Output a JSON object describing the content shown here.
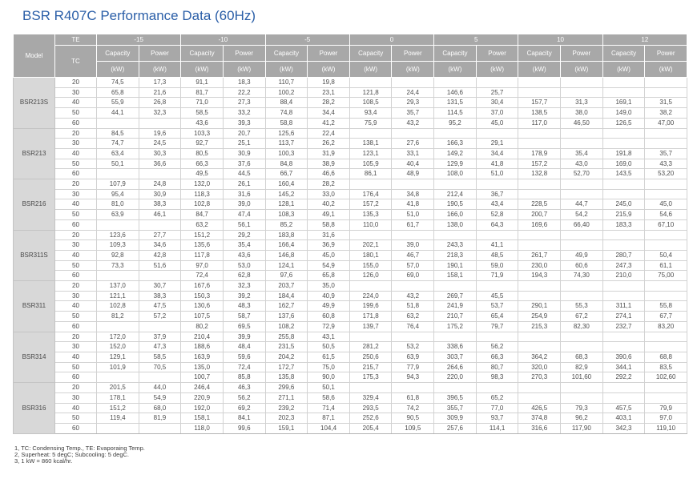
{
  "title": "BSR R407C Performance Data (60Hz)",
  "colors": {
    "title_blue": "#2b5fa8",
    "header_gray": "#a8a8a8",
    "model_gray": "#d8d8d8",
    "grid_gray": "#d2d2d2"
  },
  "table": {
    "model_header": "Model",
    "te_label": "TE",
    "tc_label": "TC",
    "capacity_label": "Capacity",
    "power_label": "Power",
    "unit_label": "(kW)",
    "te_values": [
      "-15",
      "-10",
      "-5",
      "0",
      "5",
      "10",
      "12"
    ],
    "models": [
      {
        "name": "BSR213S",
        "rows": [
          {
            "tc": "20",
            "values": [
              "74,5",
              "17,3",
              "91,1",
              "18,3",
              "110,7",
              "19,8",
              "",
              "",
              "",
              "",
              "",
              "",
              "",
              ""
            ]
          },
          {
            "tc": "30",
            "values": [
              "65,8",
              "21,6",
              "81,7",
              "22,2",
              "100,2",
              "23,1",
              "121,8",
              "24,4",
              "146,6",
              "25,7",
              "",
              "",
              "",
              ""
            ]
          },
          {
            "tc": "40",
            "values": [
              "55,9",
              "26,8",
              "71,0",
              "27,3",
              "88,4",
              "28,2",
              "108,5",
              "29,3",
              "131,5",
              "30,4",
              "157,7",
              "31,3",
              "169,1",
              "31,5"
            ]
          },
          {
            "tc": "50",
            "values": [
              "44,1",
              "32,3",
              "58,5",
              "33,2",
              "74,8",
              "34,4",
              "93,4",
              "35,7",
              "114,5",
              "37,0",
              "138,5",
              "38,0",
              "149,0",
              "38,2"
            ]
          },
          {
            "tc": "60",
            "values": [
              "",
              "",
              "43,6",
              "39,3",
              "58,8",
              "41,2",
              "75,9",
              "43,2",
              "95,2",
              "45,0",
              "117,0",
              "46,50",
              "126,5",
              "47,00"
            ]
          }
        ]
      },
      {
        "name": "BSR213",
        "rows": [
          {
            "tc": "20",
            "values": [
              "84,5",
              "19,6",
              "103,3",
              "20,7",
              "125,6",
              "22,4",
              "",
              "",
              "",
              "",
              "",
              "",
              "",
              ""
            ]
          },
          {
            "tc": "30",
            "values": [
              "74,7",
              "24,5",
              "92,7",
              "25,1",
              "113,7",
              "26,2",
              "138,1",
              "27,6",
              "166,3",
              "29,1",
              "",
              "",
              "",
              ""
            ]
          },
          {
            "tc": "40",
            "values": [
              "63,4",
              "30,3",
              "80,5",
              "30,9",
              "100,3",
              "31,9",
              "123,1",
              "33,1",
              "149,2",
              "34,4",
              "178,9",
              "35,4",
              "191,8",
              "35,7"
            ]
          },
          {
            "tc": "50",
            "values": [
              "50,1",
              "36,6",
              "66,3",
              "37,6",
              "84,8",
              "38,9",
              "105,9",
              "40,4",
              "129,9",
              "41,8",
              "157,2",
              "43,0",
              "169,0",
              "43,3"
            ]
          },
          {
            "tc": "60",
            "values": [
              "",
              "",
              "49,5",
              "44,5",
              "66,7",
              "46,6",
              "86,1",
              "48,9",
              "108,0",
              "51,0",
              "132,8",
              "52,70",
              "143,5",
              "53,20"
            ]
          }
        ]
      },
      {
        "name": "BSR216",
        "rows": [
          {
            "tc": "20",
            "values": [
              "107,9",
              "24,8",
              "132,0",
              "26,1",
              "160,4",
              "28,2",
              "",
              "",
              "",
              "",
              "",
              "",
              "",
              ""
            ]
          },
          {
            "tc": "30",
            "values": [
              "95,4",
              "30,9",
              "118,3",
              "31,6",
              "145,2",
              "33,0",
              "176,4",
              "34,8",
              "212,4",
              "36,7",
              "",
              "",
              "",
              ""
            ]
          },
          {
            "tc": "40",
            "values": [
              "81,0",
              "38,3",
              "102,8",
              "39,0",
              "128,1",
              "40,2",
              "157,2",
              "41,8",
              "190,5",
              "43,4",
              "228,5",
              "44,7",
              "245,0",
              "45,0"
            ]
          },
          {
            "tc": "50",
            "values": [
              "63,9",
              "46,1",
              "84,7",
              "47,4",
              "108,3",
              "49,1",
              "135,3",
              "51,0",
              "166,0",
              "52,8",
              "200,7",
              "54,2",
              "215,9",
              "54,6"
            ]
          },
          {
            "tc": "60",
            "values": [
              "",
              "",
              "63,2",
              "56,1",
              "85,2",
              "58,8",
              "110,0",
              "61,7",
              "138,0",
              "64,3",
              "169,6",
              "66,40",
              "183,3",
              "67,10"
            ]
          }
        ]
      },
      {
        "name": "BSR311S",
        "rows": [
          {
            "tc": "20",
            "values": [
              "123,6",
              "27,7",
              "151,2",
              "29,2",
              "183,8",
              "31,6",
              "",
              "",
              "",
              "",
              "",
              "",
              "",
              ""
            ]
          },
          {
            "tc": "30",
            "values": [
              "109,3",
              "34,6",
              "135,6",
              "35,4",
              "166,4",
              "36,9",
              "202,1",
              "39,0",
              "243,3",
              "41,1",
              "",
              "",
              "",
              ""
            ]
          },
          {
            "tc": "40",
            "values": [
              "92,8",
              "42,8",
              "117,8",
              "43,6",
              "146,8",
              "45,0",
              "180,1",
              "46,7",
              "218,3",
              "48,5",
              "261,7",
              "49,9",
              "280,7",
              "50,4"
            ]
          },
          {
            "tc": "50",
            "values": [
              "73,3",
              "51,6",
              "97,0",
              "53,0",
              "124,1",
              "54,9",
              "155,0",
              "57,0",
              "190,1",
              "59,0",
              "230,0",
              "60,6",
              "247,3",
              "61,1"
            ]
          },
          {
            "tc": "60",
            "values": [
              "",
              "",
              "72,4",
              "62,8",
              "97,6",
              "65,8",
              "126,0",
              "69,0",
              "158,1",
              "71,9",
              "194,3",
              "74,30",
              "210,0",
              "75,00"
            ]
          }
        ]
      },
      {
        "name": "BSR311",
        "rows": [
          {
            "tc": "20",
            "values": [
              "137,0",
              "30,7",
              "167,6",
              "32,3",
              "203,7",
              "35,0",
              "",
              "",
              "",
              "",
              "",
              "",
              "",
              ""
            ]
          },
          {
            "tc": "30",
            "values": [
              "121,1",
              "38,3",
              "150,3",
              "39,2",
              "184,4",
              "40,9",
              "224,0",
              "43,2",
              "269,7",
              "45,5",
              "",
              "",
              "",
              ""
            ]
          },
          {
            "tc": "40",
            "values": [
              "102,8",
              "47,5",
              "130,6",
              "48,3",
              "162,7",
              "49,9",
              "199,6",
              "51,8",
              "241,9",
              "53,7",
              "290,1",
              "55,3",
              "311,1",
              "55,8"
            ]
          },
          {
            "tc": "50",
            "values": [
              "81,2",
              "57,2",
              "107,5",
              "58,7",
              "137,6",
              "60,8",
              "171,8",
              "63,2",
              "210,7",
              "65,4",
              "254,9",
              "67,2",
              "274,1",
              "67,7"
            ]
          },
          {
            "tc": "60",
            "values": [
              "",
              "",
              "80,2",
              "69,5",
              "108,2",
              "72,9",
              "139,7",
              "76,4",
              "175,2",
              "79,7",
              "215,3",
              "82,30",
              "232,7",
              "83,20"
            ]
          }
        ]
      },
      {
        "name": "BSR314",
        "rows": [
          {
            "tc": "20",
            "values": [
              "172,0",
              "37,9",
              "210,4",
              "39,9",
              "255,8",
              "43,1",
              "",
              "",
              "",
              "",
              "",
              "",
              "",
              ""
            ]
          },
          {
            "tc": "30",
            "values": [
              "152,0",
              "47,3",
              "188,6",
              "48,4",
              "231,5",
              "50,5",
              "281,2",
              "53,2",
              "338,6",
              "56,2",
              "",
              "",
              "",
              ""
            ]
          },
          {
            "tc": "40",
            "values": [
              "129,1",
              "58,5",
              "163,9",
              "59,6",
              "204,2",
              "61,5",
              "250,6",
              "63,9",
              "303,7",
              "66,3",
              "364,2",
              "68,3",
              "390,6",
              "68,8"
            ]
          },
          {
            "tc": "50",
            "values": [
              "101,9",
              "70,5",
              "135,0",
              "72,4",
              "172,7",
              "75,0",
              "215,7",
              "77,9",
              "264,6",
              "80,7",
              "320,0",
              "82,9",
              "344,1",
              "83,5"
            ]
          },
          {
            "tc": "60",
            "values": [
              "",
              "",
              "100,7",
              "85,8",
              "135,8",
              "90,0",
              "175,3",
              "94,3",
              "220,0",
              "98,3",
              "270,3",
              "101,60",
              "292,2",
              "102,60"
            ]
          }
        ]
      },
      {
        "name": "BSR316",
        "rows": [
          {
            "tc": "20",
            "values": [
              "201,5",
              "44,0",
              "246,4",
              "46,3",
              "299,6",
              "50,1",
              "",
              "",
              "",
              "",
              "",
              "",
              "",
              ""
            ]
          },
          {
            "tc": "30",
            "values": [
              "178,1",
              "54,9",
              "220,9",
              "56,2",
              "271,1",
              "58,6",
              "329,4",
              "61,8",
              "396,5",
              "65,2",
              "",
              "",
              "",
              ""
            ]
          },
          {
            "tc": "40",
            "values": [
              "151,2",
              "68,0",
              "192,0",
              "69,2",
              "239,2",
              "71,4",
              "293,5",
              "74,2",
              "355,7",
              "77,0",
              "426,5",
              "79,3",
              "457,5",
              "79,9"
            ]
          },
          {
            "tc": "50",
            "values": [
              "119,4",
              "81,9",
              "158,1",
              "84,1",
              "202,3",
              "87,1",
              "252,6",
              "90,5",
              "309,9",
              "93,7",
              "374,8",
              "96,2",
              "403,1",
              "97,0"
            ]
          },
          {
            "tc": "60",
            "values": [
              "",
              "",
              "118,0",
              "99,6",
              "159,1",
              "104,4",
              "205,4",
              "109,5",
              "257,6",
              "114,1",
              "316,6",
              "117,90",
              "342,3",
              "119,10"
            ]
          }
        ]
      }
    ]
  },
  "footnotes": [
    "1, TC: Condensing Temp., TE: Evaporaing Temp.",
    "2, Superheat: 5 degC; Subcooling: 5 degC.",
    "3, 1 kW = 860 kcal/hr."
  ]
}
